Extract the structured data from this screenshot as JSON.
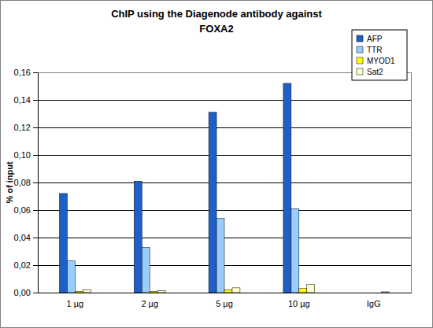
{
  "chart_data": {
    "type": "bar",
    "title": [
      "ChIP using the Diagenode antibody against",
      "FOXA2"
    ],
    "y_label": "% of input",
    "categories": [
      "1 µg",
      "2 µg",
      "5 µg",
      "10 µg",
      "IgG"
    ],
    "series": [
      {
        "name": "AFP",
        "color": "#1f5fc8",
        "values": [
          0.072,
          0.081,
          0.131,
          0.152,
          0
        ]
      },
      {
        "name": "TTR",
        "color": "#99ccff",
        "values": [
          0.023,
          0.033,
          0.054,
          0.061,
          0
        ]
      },
      {
        "name": "MYOD1",
        "color": "#ffff00",
        "values": [
          0.001,
          0.001,
          0.002,
          0.003,
          0
        ]
      },
      {
        "name": "Sat2",
        "color": "#ffffcc",
        "values": [
          0.002,
          0.0015,
          0.0035,
          0.006,
          0.0006
        ]
      }
    ],
    "ylim": [
      0,
      0.16
    ],
    "yticks": [
      {
        "value": 0,
        "label": "0,00"
      },
      {
        "value": 0.02,
        "label": "0,02"
      },
      {
        "value": 0.04,
        "label": "0,04"
      },
      {
        "value": 0.06,
        "label": "0,06"
      },
      {
        "value": 0.08,
        "label": "0,08"
      },
      {
        "value": 0.1,
        "label": "0,10"
      },
      {
        "value": 0.12,
        "label": "0,12"
      },
      {
        "value": 0.14,
        "label": "0,14"
      },
      {
        "value": 0.16,
        "label": "0,16"
      }
    ],
    "grid": true,
    "legend": "top-right"
  }
}
